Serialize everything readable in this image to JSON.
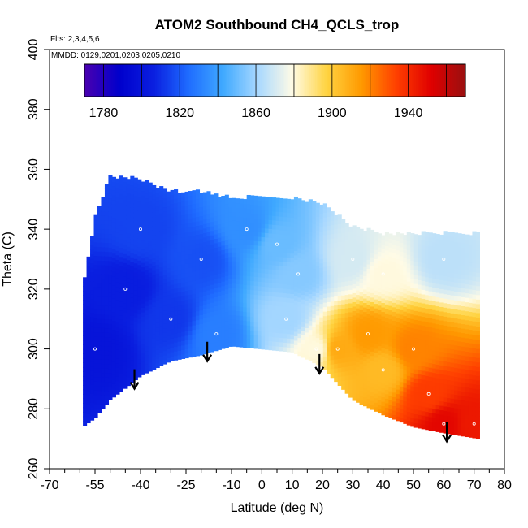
{
  "chart_data": {
    "type": "heatmap",
    "title": "ATOM2 Southbound CH4_QCLS_trop",
    "annotations": {
      "flights": "Flts: 2,3,4,5,6",
      "dates": "MMDD: 0129,0201,0203,0205,0210"
    },
    "xlabel": "Latitude (deg N)",
    "ylabel": "Theta (C)",
    "xlim": [
      -70,
      80
    ],
    "ylim": [
      260,
      400
    ],
    "x_ticks": [
      -70,
      -55,
      -40,
      -25,
      -10,
      0,
      10,
      20,
      30,
      40,
      50,
      60,
      70,
      80
    ],
    "x_minor_ticks": [
      -65,
      -60,
      -50,
      -45,
      -35,
      -30,
      -20,
      -15,
      -5,
      5,
      15,
      25,
      35,
      45,
      55,
      65,
      75
    ],
    "y_ticks": [
      260,
      280,
      300,
      320,
      340,
      360,
      380,
      400
    ],
    "colorbar": {
      "range": [
        1770,
        1970
      ],
      "ticks": [
        1780,
        1820,
        1860,
        1900,
        1940
      ],
      "colors": [
        "#4a00b0",
        "#0000cc",
        "#0a1fe0",
        "#1f6cff",
        "#3fa9ff",
        "#a8d8ff",
        "#fffbe6",
        "#ffd340",
        "#ff9900",
        "#ff4000",
        "#e00000",
        "#9a1010"
      ]
    },
    "valid_theta_by_lat": [
      {
        "lat": -59,
        "theta": [
          274,
          320
        ]
      },
      {
        "lat": -55,
        "theta": [
          277,
          343
        ]
      },
      {
        "lat": -50,
        "theta": [
          283,
          357
        ]
      },
      {
        "lat": -40,
        "theta": [
          291,
          356
        ]
      },
      {
        "lat": -30,
        "theta": [
          296,
          352
        ]
      },
      {
        "lat": -20,
        "theta": [
          298,
          352
        ]
      },
      {
        "lat": -10,
        "theta": [
          301,
          350
        ]
      },
      {
        "lat": 0,
        "theta": [
          300,
          350
        ]
      },
      {
        "lat": 10,
        "theta": [
          299,
          350
        ]
      },
      {
        "lat": 20,
        "theta": [
          294,
          348
        ]
      },
      {
        "lat": 30,
        "theta": [
          283,
          340
        ]
      },
      {
        "lat": 40,
        "theta": [
          278,
          338
        ]
      },
      {
        "lat": 50,
        "theta": [
          274,
          338
        ]
      },
      {
        "lat": 60,
        "theta": [
          272,
          338
        ]
      },
      {
        "lat": 72,
        "theta": [
          270,
          338
        ]
      }
    ],
    "field_points": [
      {
        "lat": -55,
        "theta": 300,
        "ch4": 1800
      },
      {
        "lat": -45,
        "theta": 320,
        "ch4": 1805
      },
      {
        "lat": -40,
        "theta": 340,
        "ch4": 1815
      },
      {
        "lat": -30,
        "theta": 310,
        "ch4": 1812
      },
      {
        "lat": -20,
        "theta": 330,
        "ch4": 1818
      },
      {
        "lat": -15,
        "theta": 305,
        "ch4": 1830
      },
      {
        "lat": -5,
        "theta": 340,
        "ch4": 1835
      },
      {
        "lat": 5,
        "theta": 335,
        "ch4": 1850
      },
      {
        "lat": 8,
        "theta": 310,
        "ch4": 1860
      },
      {
        "lat": 12,
        "theta": 325,
        "ch4": 1855
      },
      {
        "lat": 18,
        "theta": 300,
        "ch4": 1880
      },
      {
        "lat": 25,
        "theta": 300,
        "ch4": 1910
      },
      {
        "lat": 35,
        "theta": 305,
        "ch4": 1915
      },
      {
        "lat": 40,
        "theta": 293,
        "ch4": 1905
      },
      {
        "lat": 50,
        "theta": 300,
        "ch4": 1920
      },
      {
        "lat": 55,
        "theta": 285,
        "ch4": 1935
      },
      {
        "lat": 60,
        "theta": 275,
        "ch4": 1950
      },
      {
        "lat": 70,
        "theta": 275,
        "ch4": 1945
      },
      {
        "lat": 60,
        "theta": 330,
        "ch4": 1865
      },
      {
        "lat": 40,
        "theta": 325,
        "ch4": 1880
      },
      {
        "lat": 30,
        "theta": 330,
        "ch4": 1870
      }
    ],
    "arrows_lat": [
      -42,
      -18,
      19,
      61
    ]
  }
}
